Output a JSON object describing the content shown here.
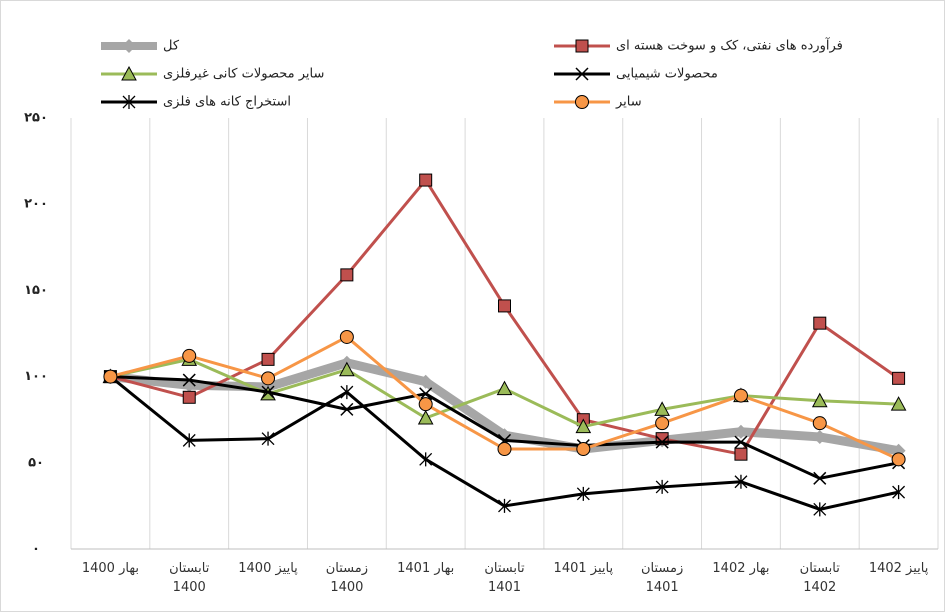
{
  "chart_data": {
    "type": "line",
    "categories": [
      "بهار 1400",
      "تابستان 1400",
      "پاییز 1400",
      "زمستان 1400",
      "بهار 1401",
      "تابستان 1401",
      "پاییز 1401",
      "زمستان 1401",
      "بهار 1402",
      "تابستان 1402",
      "پاییز 1402"
    ],
    "series": [
      {
        "name": "کل",
        "color": "#a6a6a6",
        "marker": "diamond",
        "values": [
          100,
          95,
          94,
          108,
          97,
          66,
          58,
          63,
          68,
          65,
          57
        ]
      },
      {
        "name": "فرآورده های نفتی، کک و سوخت هسته ای",
        "color": "#c0504d",
        "marker": "square",
        "values": [
          100,
          88,
          110,
          159,
          214,
          141,
          75,
          64,
          55,
          131,
          99
        ]
      },
      {
        "name": "سایر محصولات کانی غیرفلزی",
        "color": "#9bbb59",
        "marker": "triangle",
        "values": [
          100,
          110,
          90,
          104,
          76,
          93,
          71,
          81,
          89,
          86,
          84
        ]
      },
      {
        "name": "محصولات شیمیایی",
        "color": "#000000",
        "marker": "x",
        "values": [
          100,
          98,
          91,
          81,
          90,
          63,
          60,
          62,
          62,
          41,
          50
        ]
      },
      {
        "name": "استخراج کانه های فلزی",
        "color": "#000000",
        "marker": "star",
        "values": [
          100,
          63,
          64,
          91,
          52,
          25,
          32,
          36,
          39,
          23,
          33
        ]
      },
      {
        "name": "سایر",
        "color": "#f79646",
        "marker": "circle",
        "values": [
          100,
          112,
          99,
          123,
          84,
          58,
          58,
          73,
          89,
          73,
          52
        ]
      }
    ],
    "ylim": [
      0,
      250
    ],
    "yticks": [
      {
        "value": 0,
        "label": "۰"
      },
      {
        "value": 50,
        "label": "۵۰"
      },
      {
        "value": 100,
        "label": "۱۰۰"
      },
      {
        "value": 150,
        "label": "۱۵۰"
      },
      {
        "value": 200,
        "label": "۲۰۰"
      },
      {
        "value": 250,
        "label": "۲۵۰"
      }
    ]
  }
}
